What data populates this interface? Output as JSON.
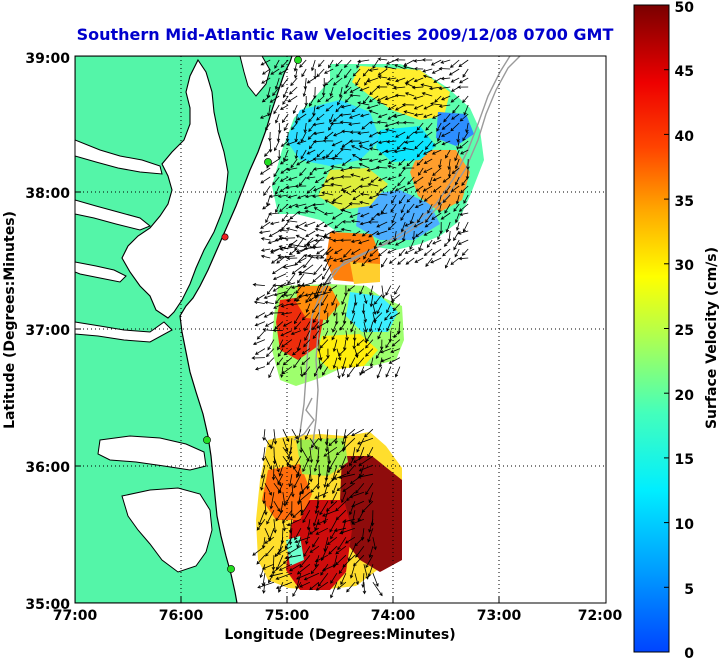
{
  "title": "Southern Mid-Atlantic Raw Velocities 2009/12/08 0700 GMT",
  "xlabel": "Longitude (Degrees:Minutes)",
  "ylabel": "Latitude (Degrees:Minutes)",
  "x_ticks": [
    "77:00",
    "76:00",
    "75:00",
    "74:00",
    "73:00",
    "72:00"
  ],
  "y_ticks": [
    "39:00",
    "38:00",
    "37:00",
    "36:00",
    "35:00"
  ],
  "colorbar": {
    "label": "Surface Velocity (cm/s)",
    "ticks": [
      "0",
      "5",
      "10",
      "15",
      "20",
      "25",
      "30",
      "35",
      "40",
      "45",
      "50"
    ],
    "min": 0,
    "max": 50
  },
  "colors": {
    "title": "#0000cc",
    "land": "#54f5a8",
    "ocean": "#ffffff",
    "coast": "#000000",
    "bathymetry": "#9a9a9a",
    "station_active": "#22dd22",
    "station_flag": "#ee2222"
  },
  "map_extent": {
    "lon": [
      -77,
      -72
    ],
    "lat": [
      35,
      39
    ]
  },
  "chart_data": {
    "type": "heatmap",
    "title": "Southern Mid-Atlantic Raw Velocities 2009/12/08 0700 GMT",
    "xlabel": "Longitude (Degrees:Minutes)",
    "ylabel": "Latitude (Degrees:Minutes)",
    "xlim": [
      -77,
      -72
    ],
    "ylim": [
      35,
      39
    ],
    "color_range_cm_s": [
      0,
      50
    ],
    "regions": [
      {
        "lon": [
          -75.2,
          -73.25
        ],
        "lat": [
          37.5,
          39.0
        ],
        "typical_speed_cm_s": 18
      },
      {
        "lon": [
          -75.05,
          -74.55
        ],
        "lat": [
          37.25,
          37.7
        ],
        "typical_speed_cm_s": 38
      },
      {
        "lon": [
          -75.25,
          -73.85
        ],
        "lat": [
          36.65,
          37.35
        ],
        "typical_speed_cm_s": 22
      },
      {
        "lon": [
          -75.25,
          -74.1
        ],
        "lat": [
          35.1,
          36.3
        ],
        "typical_speed_cm_s": 35
      }
    ],
    "stations": [
      {
        "lon": -75.1,
        "lat": 39.05,
        "status": "active"
      },
      {
        "lon": -75.1,
        "lat": 38.2,
        "status": "active"
      },
      {
        "lon": -75.55,
        "lat": 37.7,
        "status": "flagged"
      },
      {
        "lon": -75.75,
        "lat": 36.2,
        "status": "active"
      },
      {
        "lon": -75.5,
        "lat": 35.25,
        "status": "active"
      }
    ]
  }
}
